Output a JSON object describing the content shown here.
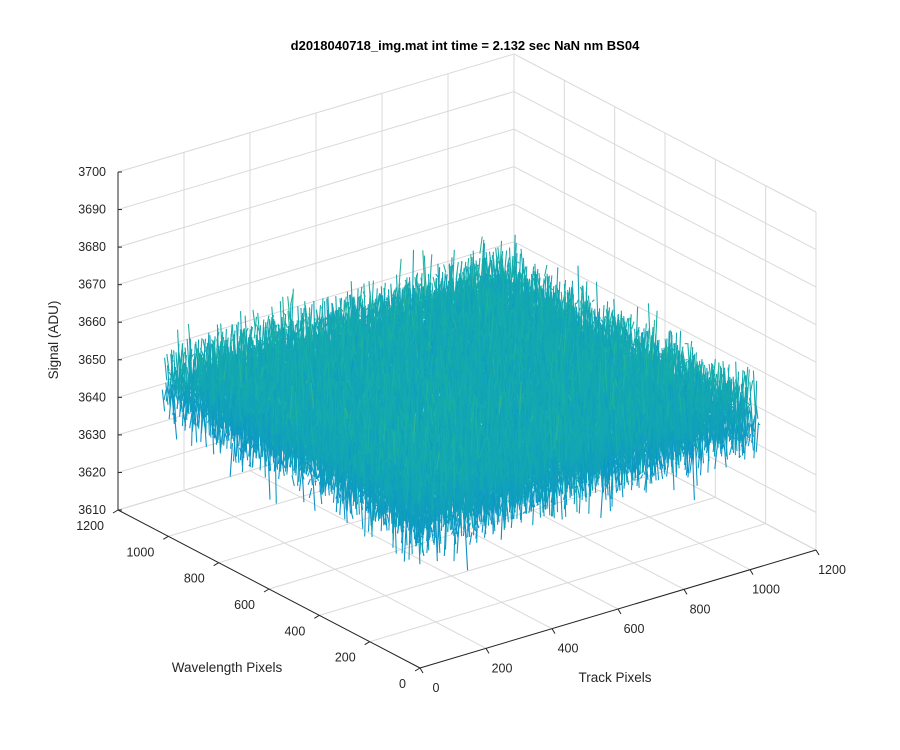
{
  "chart_data": {
    "type": "surface-3d",
    "title": "d2018040718_img.mat int time = 2.132 sec  NaN nm BS04",
    "xlabel": "Track Pixels",
    "ylabel": "Wavelength Pixels",
    "zlabel": "Signal (ADU)",
    "xlim": [
      0,
      1200
    ],
    "ylim": [
      0,
      1200
    ],
    "zlim": [
      3610,
      3700
    ],
    "xticks": [
      "0",
      "200",
      "400",
      "600",
      "800",
      "1000",
      "1200"
    ],
    "yticks": [
      "0",
      "200",
      "400",
      "600",
      "800",
      "1000",
      "1200"
    ],
    "zticks": [
      "3610",
      "3620",
      "3630",
      "3640",
      "3650",
      "3660",
      "3670",
      "3680",
      "3690",
      "3700"
    ],
    "data_extent": {
      "x": [
        0,
        1024
      ],
      "y": [
        0,
        1024
      ]
    },
    "signal_mean": 3650,
    "signal_range": [
      3618,
      3692
    ],
    "grid": true,
    "colors": {
      "low": "#0072bd",
      "mid": "#17b0a6",
      "high": "#edb120"
    }
  }
}
